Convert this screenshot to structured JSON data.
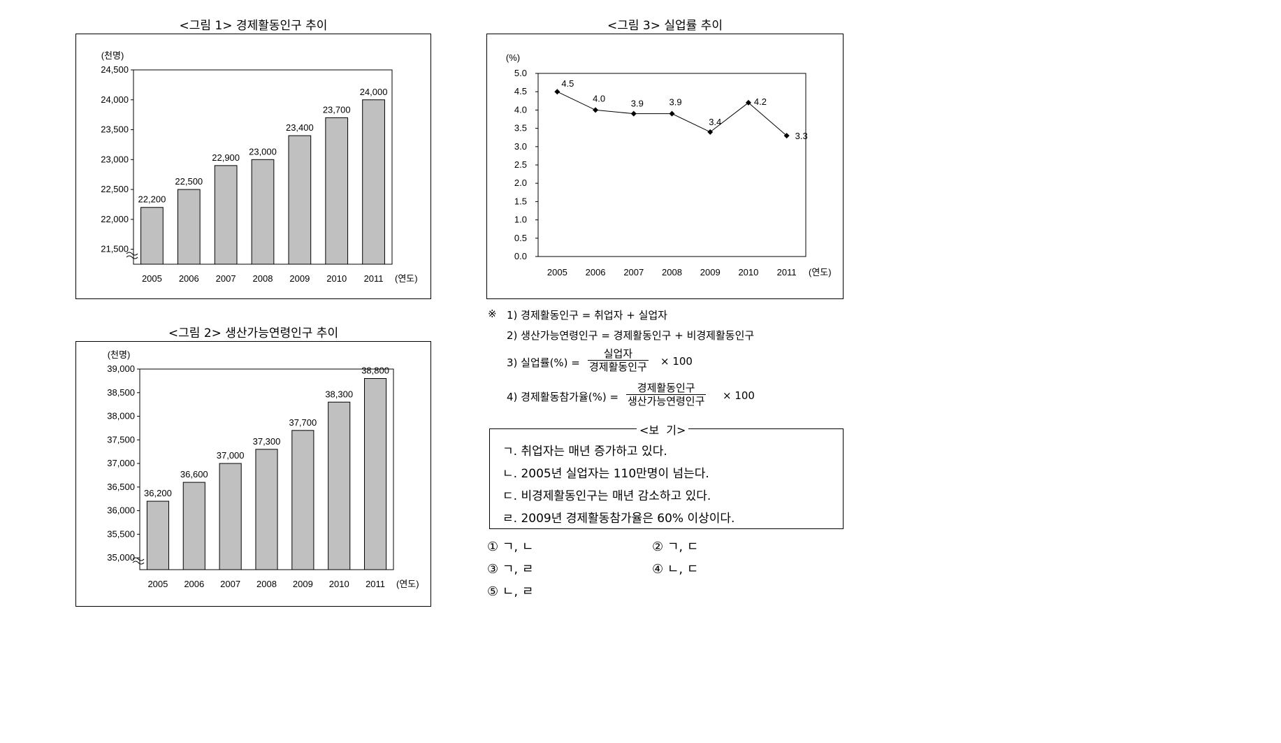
{
  "chart_data": [
    {
      "type": "bar",
      "title": "<그림 1> 경제활동인구 추이",
      "ylabel": "(천명)",
      "xlabel": "(연도)",
      "categories": [
        "2005",
        "2006",
        "2007",
        "2008",
        "2009",
        "2010",
        "2011"
      ],
      "values": [
        22200,
        22500,
        22900,
        23000,
        23400,
        23700,
        24000
      ],
      "value_labels": [
        "22,200",
        "22,500",
        "22,900",
        "23,000",
        "23,400",
        "23,700",
        "24,000"
      ],
      "yticks": [
        "21,500",
        "22,000",
        "22,500",
        "23,000",
        "23,500",
        "24,000",
        "24,500"
      ],
      "ylim": [
        21250,
        24500
      ],
      "axis_break": true,
      "bar_color": "#c0c0c0"
    },
    {
      "type": "bar",
      "title": "<그림 2> 생산가능연령인구 추이",
      "ylabel": "(천명)",
      "xlabel": "(연도)",
      "categories": [
        "2005",
        "2006",
        "2007",
        "2008",
        "2009",
        "2010",
        "2011"
      ],
      "values": [
        36200,
        36600,
        37000,
        37300,
        37700,
        38300,
        38800
      ],
      "value_labels": [
        "36,200",
        "36,600",
        "37,000",
        "37,300",
        "37,700",
        "38,300",
        "38,800"
      ],
      "yticks": [
        "35,000",
        "35,500",
        "36,000",
        "36,500",
        "37,000",
        "37,500",
        "38,000",
        "38,500",
        "39,000"
      ],
      "ylim": [
        34750,
        39000
      ],
      "axis_break": true,
      "bar_color": "#c0c0c0"
    },
    {
      "type": "line",
      "title": "<그림 3> 실업률 추이",
      "ylabel": "(%)",
      "xlabel": "(연도)",
      "categories": [
        "2005",
        "2006",
        "2007",
        "2008",
        "2009",
        "2010",
        "2011"
      ],
      "values": [
        4.5,
        4.0,
        3.9,
        3.9,
        3.4,
        4.2,
        3.3
      ],
      "value_labels": [
        "4.5",
        "4.0",
        "3.9",
        "3.9",
        "3.4",
        "4.2",
        "3.3"
      ],
      "yticks": [
        "0.0",
        "0.5",
        "1.0",
        "1.5",
        "2.0",
        "2.5",
        "3.0",
        "3.5",
        "4.0",
        "4.5",
        "5.0"
      ],
      "ylim": [
        0,
        5.0
      ],
      "line_color": "#000000"
    }
  ],
  "notes": {
    "mark": "※",
    "n1": "1) 경제활동인구 = 취업자 + 실업자",
    "n2": "2) 생산가능연령인구 = 경제활동인구 + 비경제활동인구",
    "n3_prefix": "3) 실업률(%) =",
    "n3_num": "실업자",
    "n3_den": "경제활동인구",
    "n3_suffix": "× 100",
    "n4_prefix": "4) 경제활동참가율(%) =",
    "n4_num": "경제활동인구",
    "n4_den": "생산가능연령인구",
    "n4_suffix": "× 100"
  },
  "bogi": {
    "title": "<보  기>",
    "items": [
      "ㄱ. 취업자는 매년 증가하고 있다.",
      "ㄴ. 2005년 실업자는 110만명이 넘는다.",
      "ㄷ. 비경제활동인구는 매년 감소하고 있다.",
      "ㄹ. 2009년 경제활동참가율은 60% 이상이다."
    ]
  },
  "choices": [
    "① ㄱ, ㄴ",
    "② ㄱ, ㄷ",
    "③ ㄱ, ㄹ",
    "④ ㄴ, ㄷ",
    "⑤ ㄴ, ㄹ"
  ]
}
